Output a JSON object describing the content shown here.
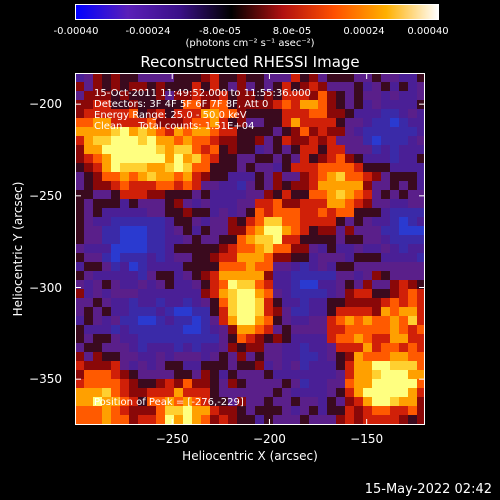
{
  "colorbar": {
    "ticks": [
      "-0.00040",
      "-0.00024",
      "-8.0e-05",
      "8.0e-05",
      "0.00024",
      "0.00040"
    ],
    "unit": "(photons cm⁻² s⁻¹ asec⁻²)",
    "colors": [
      "#0000ff",
      "#5a1fb8",
      "#3a1088",
      "#000000",
      "#b01010",
      "#ff5000",
      "#ffb000",
      "#ffffff"
    ]
  },
  "title": "Reconstructed RHESSI Image",
  "info": {
    "line1": "15-Oct-2011 11:49:52.000 to 11:55:36.000",
    "line2": "Detectors: 3F 4F 5F 6F 7F 8F, Att 0",
    "line3": "Energy Range: 25.0 - 50.0 keV",
    "line4": "Clean     Total counts: 1.51E+04",
    "peak": "Position of Peak = [-276,-229]"
  },
  "footer_date": "15-May-2022 02:42",
  "chart_data": {
    "type": "heatmap",
    "title": "Reconstructed RHESSI Image",
    "xlabel": "Heliocentric X (arcsec)",
    "ylabel": "Heliocentric Y (arcsec)",
    "xlim": [
      -300,
      -120
    ],
    "ylim": [
      -375,
      -183
    ],
    "x_ticks": [
      -250,
      -200,
      -150
    ],
    "y_ticks": [
      -200,
      -250,
      -300,
      -350
    ],
    "x_tick_labels": [
      "−250",
      "−200",
      "−150"
    ],
    "y_tick_labels": [
      "−200",
      "−250",
      "−300",
      "−350"
    ],
    "colorbar_range": [
      -0.0004,
      0.0004
    ],
    "peak_position": [
      -276,
      -229
    ],
    "hot_spots": [
      {
        "x": -270,
        "y": -228,
        "level": 1.0
      },
      {
        "x": -244,
        "y": -232,
        "level": 0.75
      },
      {
        "x": -200,
        "y": -270,
        "level": 0.85
      },
      {
        "x": -215,
        "y": -300,
        "level": 0.65
      },
      {
        "x": -213,
        "y": -315,
        "level": 0.8
      },
      {
        "x": -245,
        "y": -370,
        "level": 0.85
      },
      {
        "x": -287,
        "y": -360,
        "level": 0.8
      },
      {
        "x": -165,
        "y": -245,
        "level": 0.7
      },
      {
        "x": -160,
        "y": -325,
        "level": 0.6
      },
      {
        "x": -145,
        "y": -355,
        "level": 0.75
      },
      {
        "x": -132,
        "y": -350,
        "level": 0.7
      },
      {
        "x": -128,
        "y": -315,
        "level": 0.6
      },
      {
        "x": -290,
        "y": -215,
        "level": 0.55
      },
      {
        "x": -180,
        "y": -205,
        "level": 0.5
      },
      {
        "x": -230,
        "y": -205,
        "level": 0.45
      }
    ],
    "cold_spots": [
      {
        "x": -270,
        "y": -275,
        "level": -0.8
      },
      {
        "x": -235,
        "y": -320,
        "level": -0.75
      },
      {
        "x": -185,
        "y": -300,
        "level": -0.7
      },
      {
        "x": -130,
        "y": -270,
        "level": -0.6
      },
      {
        "x": -140,
        "y": -215,
        "level": -0.6
      },
      {
        "x": -175,
        "y": -340,
        "level": -0.55
      },
      {
        "x": -265,
        "y": -320,
        "level": -0.5
      },
      {
        "x": -220,
        "y": -250,
        "level": -0.4
      }
    ]
  }
}
